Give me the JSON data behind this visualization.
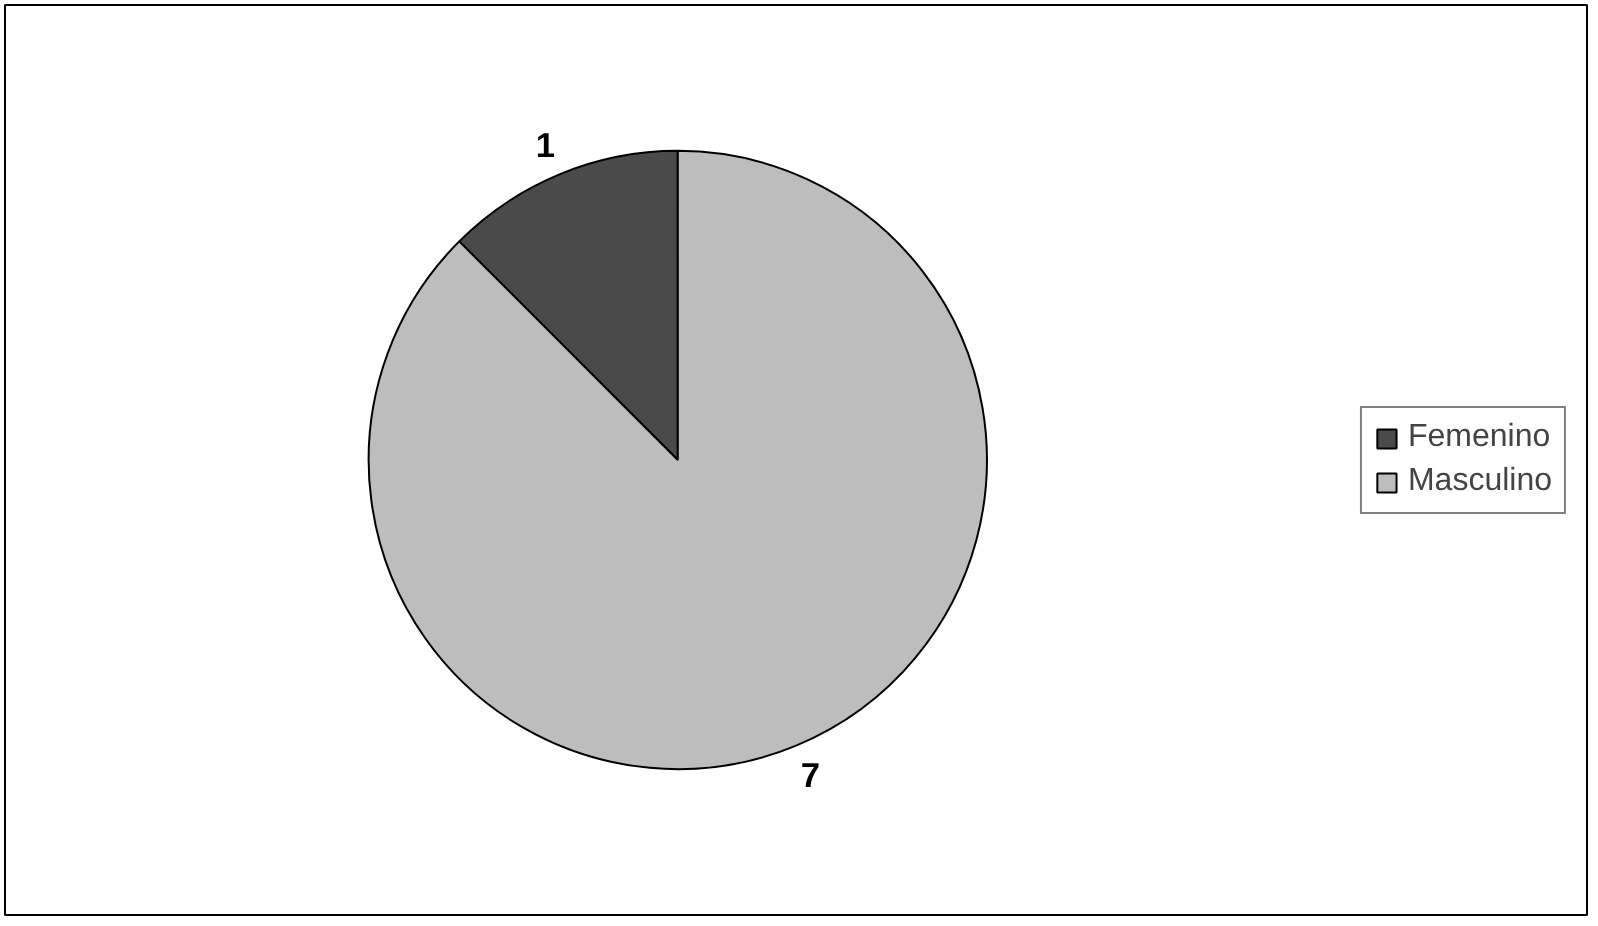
{
  "chart_data": {
    "type": "pie",
    "categories": [
      "Femenino",
      "Masculino"
    ],
    "values": [
      1,
      7
    ],
    "colors": [
      "#4a4a4a",
      "#bdbdbd"
    ],
    "data_labels": true,
    "legend": "right"
  }
}
